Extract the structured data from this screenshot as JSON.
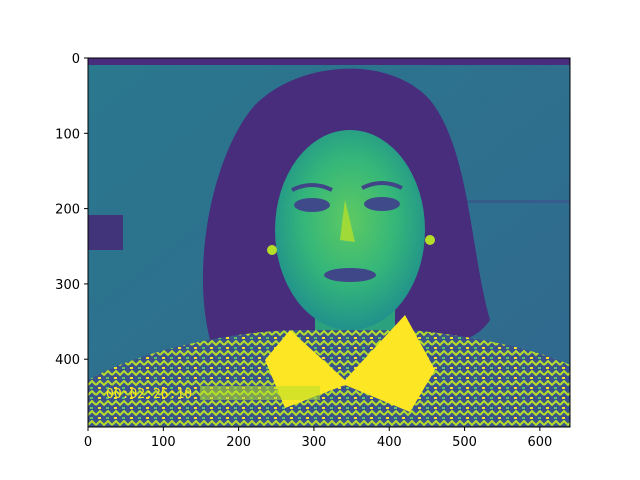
{
  "chart_data": {
    "type": "image",
    "title": "",
    "xlabel": "",
    "ylabel": "",
    "xlim": [
      0,
      640
    ],
    "ylim": [
      490,
      0
    ],
    "x_ticks": [
      0,
      100,
      200,
      300,
      400,
      500,
      600
    ],
    "y_ticks": [
      0,
      100,
      200,
      300,
      400
    ],
    "colormap": "viridis",
    "image_content": "grayscale portrait photograph rendered with a false-color colormap",
    "overlay_text": "00:02:26:10",
    "colors": {
      "low": "#440154",
      "mid_low": "#3b528b",
      "mid": "#21918c",
      "mid_high": "#5ec962",
      "high": "#fde725"
    }
  }
}
